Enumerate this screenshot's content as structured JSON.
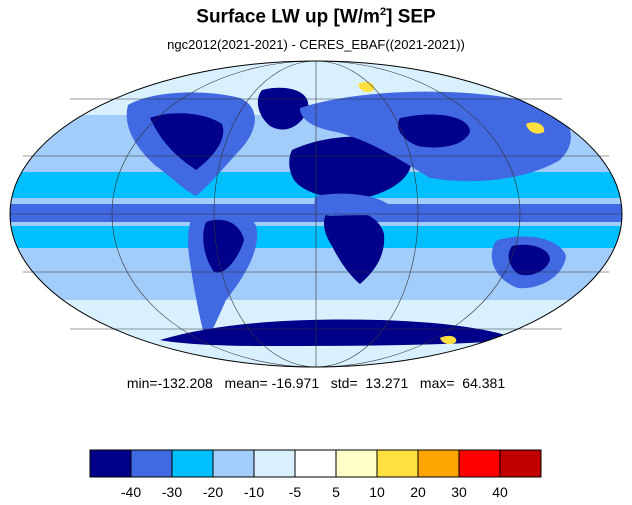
{
  "title": {
    "prefix": "Surface LW up [W/m",
    "superscript": "2",
    "suffix": "]  SEP"
  },
  "subtitle": "ngc2012(2021-2021) - CERES_EBAF((2021-2021))",
  "stats": {
    "min": "min=-132.208",
    "mean": "mean= -16.971",
    "std": "std=  13.271",
    "max": "max=  64.381"
  },
  "colorbar": {
    "colors": [
      "#00008b",
      "#4169e1",
      "#00bfff",
      "#a2cdfa",
      "#d9f1ff",
      "#ffffff",
      "#ffffc8",
      "#ffe040",
      "#ffa500",
      "#ff0000",
      "#c00000"
    ],
    "tick_labels": [
      "-40",
      "-30",
      "-20",
      "-10",
      "-5",
      "5",
      "10",
      "20",
      "30",
      "40"
    ]
  },
  "map": {
    "projection": "mollweide",
    "ocean_color": "#a2cdfa",
    "equatorial_band_color": "#4169e1",
    "tropical_band_color": "#00bfff",
    "land_dark_color": "#00008b",
    "land_mid_color": "#4169e1",
    "polar_color": "#d9f1ff",
    "warm_color": "#ffe040",
    "grid_color": "#333333"
  }
}
